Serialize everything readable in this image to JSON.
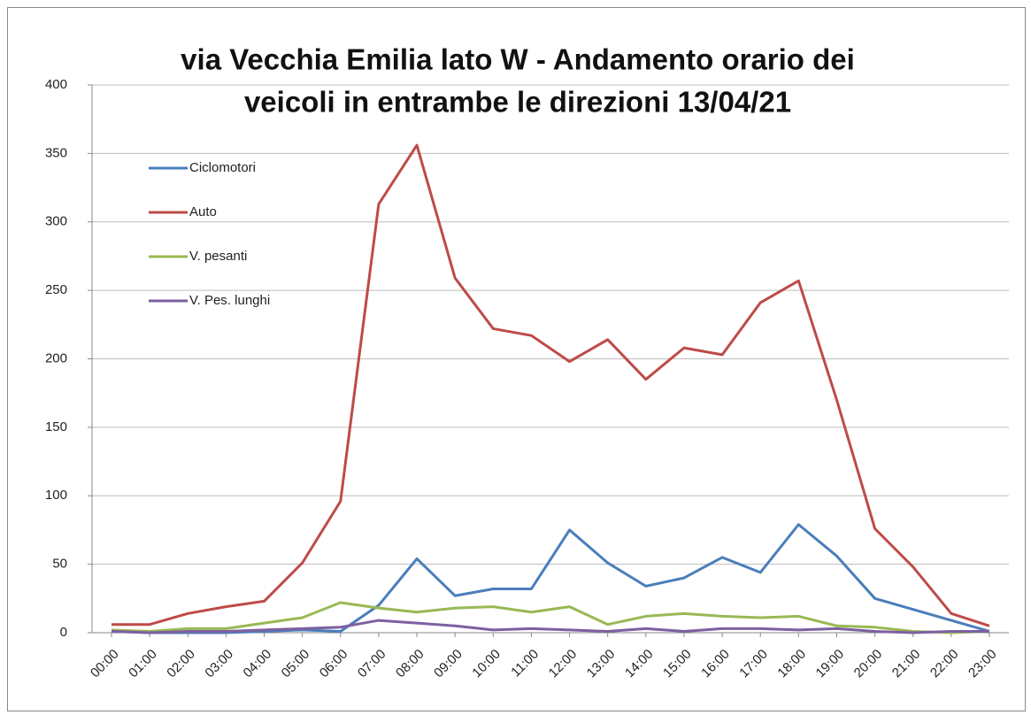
{
  "chart_data": {
    "type": "line",
    "title": [
      "via Vecchia Emilia lato W - Andamento orario dei",
      "veicoli in entrambe le direzioni 13/04/21"
    ],
    "categories": [
      "00:00",
      "01:00",
      "02:00",
      "03:00",
      "04:00",
      "05:00",
      "06:00",
      "07:00",
      "08:00",
      "09:00",
      "10:00",
      "11:00",
      "12:00",
      "13:00",
      "14:00",
      "15:00",
      "16:00",
      "17:00",
      "18:00",
      "19:00",
      "20:00",
      "21:00",
      "22:00",
      "23:00"
    ],
    "series": [
      {
        "name": "Ciclomotori",
        "color": "#4a7ebb",
        "values": [
          1,
          0,
          0,
          0,
          1,
          2,
          1,
          20,
          54,
          27,
          32,
          32,
          75,
          51,
          34,
          40,
          55,
          44,
          79,
          56,
          25,
          17,
          9,
          1
        ]
      },
      {
        "name": "Auto",
        "color": "#be4b48",
        "values": [
          6,
          6,
          14,
          19,
          23,
          51,
          96,
          313,
          356,
          259,
          222,
          217,
          198,
          214,
          185,
          208,
          203,
          241,
          257,
          170,
          76,
          48,
          14,
          5
        ]
      },
      {
        "name": "V. pesanti",
        "color": "#98b954",
        "values": [
          2,
          1,
          3,
          3,
          7,
          11,
          22,
          18,
          15,
          18,
          19,
          15,
          19,
          6,
          12,
          14,
          12,
          11,
          12,
          5,
          4,
          1,
          0,
          1
        ]
      },
      {
        "name": "V. Pes. lunghi",
        "color": "#7d60a0",
        "values": [
          1,
          0,
          1,
          1,
          2,
          3,
          4,
          9,
          7,
          5,
          2,
          3,
          2,
          1,
          3,
          1,
          3,
          3,
          2,
          3,
          1,
          0,
          1,
          1
        ]
      }
    ],
    "ylim": [
      0,
      400
    ],
    "yticks": [
      0,
      50,
      100,
      150,
      200,
      250,
      300,
      350,
      400
    ],
    "grid": true,
    "legend": "upper left"
  }
}
